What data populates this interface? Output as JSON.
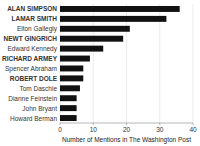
{
  "chart_data": {
    "type": "bar",
    "orientation": "horizontal",
    "categories": [
      "Howard Berman",
      "John Bryant",
      "Dianne Feinstein",
      "Tom Daschle",
      "ROBERT DOLE",
      "Spencer Abraham",
      "RICHARD ARMEY",
      "Edward Kennedy",
      "NEWT GINGRICH",
      "Elton Gallegly",
      "LAMAR SMITH",
      "ALAN SIMPSON"
    ],
    "values": [
      5,
      5,
      5,
      6,
      7,
      7,
      9,
      13,
      19,
      21,
      32,
      36
    ],
    "color": "#111111",
    "xlabel": "Number of Mentions in The Washington Post",
    "xlim": [
      0,
      40
    ],
    "xticks": [
      0,
      10,
      20,
      30,
      40
    ],
    "grid": true
  }
}
